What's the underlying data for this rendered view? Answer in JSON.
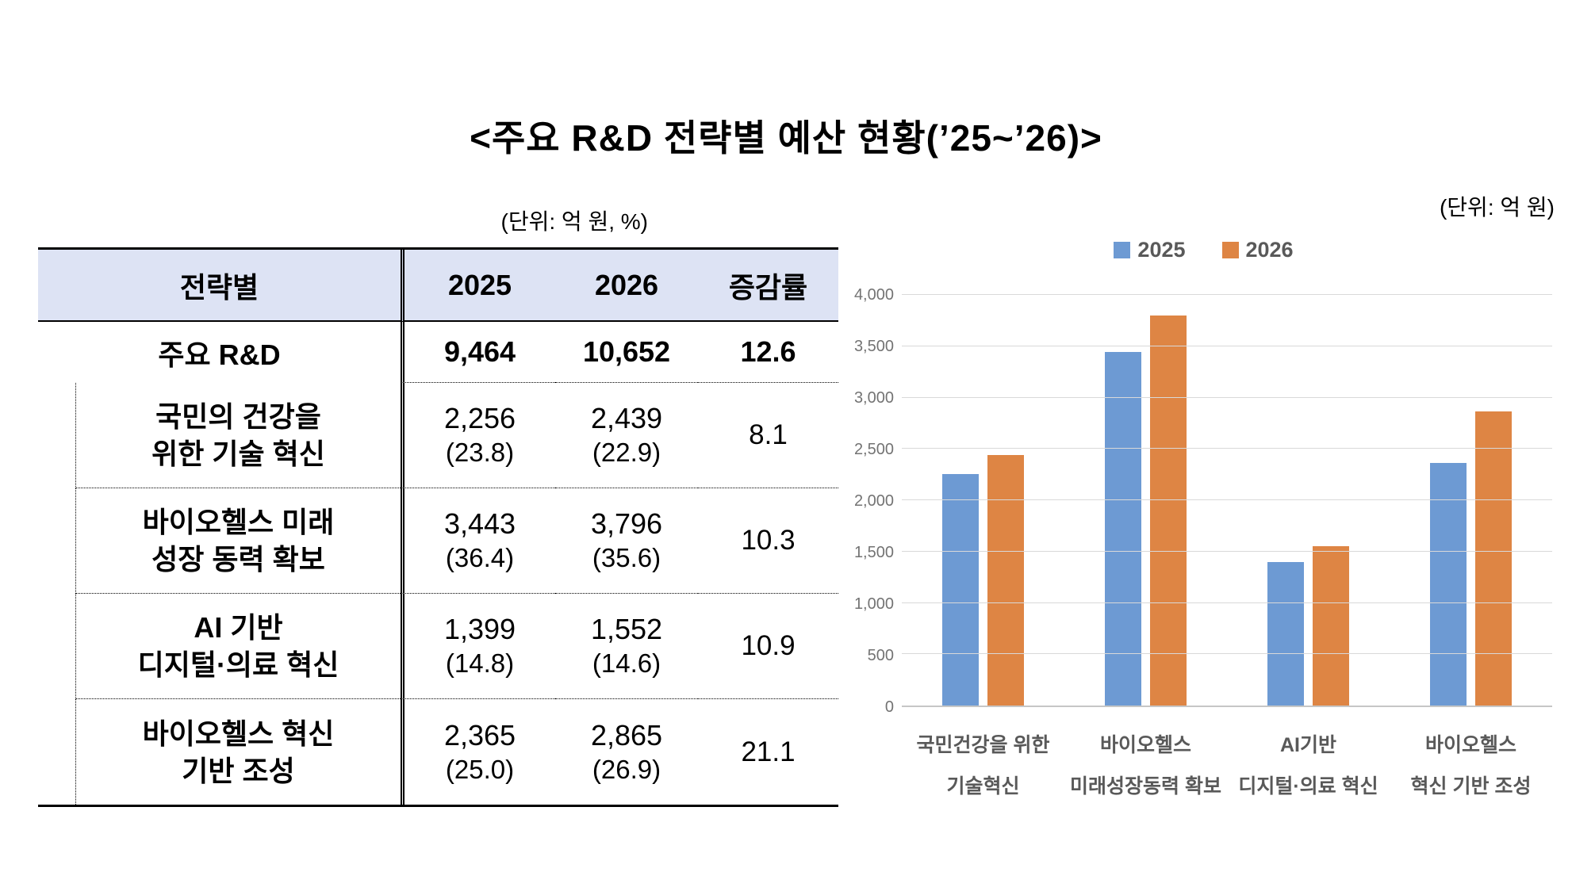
{
  "title": "<주요 R&D 전략별 예산 현황(’25~’26)>",
  "table": {
    "unit_note": "(단위: 억 원, %)",
    "header_bg": "#dde3f4",
    "headers": {
      "strategy": "전략별",
      "y2025": "2025",
      "y2026": "2026",
      "rate": "증감률"
    },
    "total_row": {
      "label": "주요 R&D",
      "y2025": "9,464",
      "y2026": "10,652",
      "rate": "12.6"
    },
    "rows": [
      {
        "label_line1": "국민의 건강을",
        "label_line2": "위한 기술 혁신",
        "y2025": "2,256",
        "y2025_share": "(23.8)",
        "y2026": "2,439",
        "y2026_share": "(22.9)",
        "rate": "8.1"
      },
      {
        "label_line1": "바이오헬스 미래",
        "label_line2": "성장 동력 확보",
        "y2025": "3,443",
        "y2025_share": "(36.4)",
        "y2026": "3,796",
        "y2026_share": "(35.6)",
        "rate": "10.3"
      },
      {
        "label_line1": "AI 기반",
        "label_line2": "디지털·의료 혁신",
        "y2025": "1,399",
        "y2025_share": "(14.8)",
        "y2026": "1,552",
        "y2026_share": "(14.6)",
        "rate": "10.9"
      },
      {
        "label_line1": "바이오헬스 혁신",
        "label_line2": "기반 조성",
        "y2025": "2,365",
        "y2025_share": "(25.0)",
        "y2026": "2,865",
        "y2026_share": "(26.9)",
        "rate": "21.1"
      }
    ]
  },
  "chart": {
    "unit_note": "(단위: 억 원)"
  },
  "chart_data": {
    "type": "bar",
    "title": "",
    "xlabel": "",
    "ylabel": "",
    "ylim": [
      0,
      4000
    ],
    "ytick_step": 500,
    "grid": true,
    "legend_position": "top",
    "categories": [
      [
        "국민건강을 위한",
        "기술혁신"
      ],
      [
        "바이오헬스",
        "미래성장동력 확보"
      ],
      [
        "AI기반",
        "디지털·의료 혁신"
      ],
      [
        "바이오헬스",
        "혁신 기반 조성"
      ]
    ],
    "series": [
      {
        "name": "2025",
        "color": "#6D9AD3",
        "values": [
          2256,
          3443,
          1399,
          2365
        ]
      },
      {
        "name": "2026",
        "color": "#DE8544",
        "values": [
          2439,
          3796,
          1552,
          2865
        ]
      }
    ]
  }
}
